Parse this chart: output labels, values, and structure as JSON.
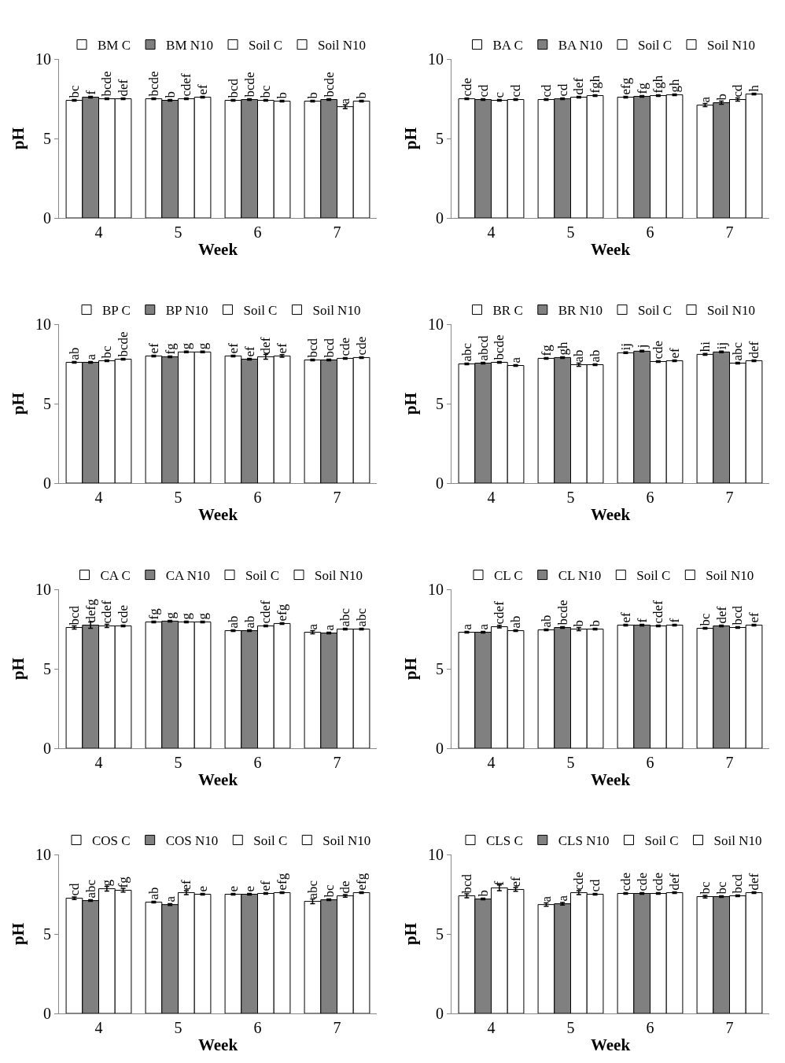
{
  "chart_data": [
    {
      "type": "bar",
      "xlabel": "Week",
      "ylabel": "pH",
      "categories": [
        "4",
        "5",
        "6",
        "7"
      ],
      "ylim": [
        0,
        10
      ],
      "yticks": [
        0,
        5,
        10
      ],
      "grid": false,
      "legend": "top",
      "series": [
        {
          "name": "BM C",
          "color": "#ffffff",
          "values": [
            7.4,
            7.5,
            7.4,
            7.35
          ],
          "errors": [
            0.05,
            0.05,
            0.05,
            0.05
          ],
          "value_labels": [
            "bc",
            "bcde",
            "bcd",
            "b"
          ]
        },
        {
          "name": "BM N10",
          "color": "#808080",
          "values": [
            7.6,
            7.4,
            7.45,
            7.45
          ],
          "errors": [
            0.05,
            0.05,
            0.05,
            0.05
          ],
          "value_labels": [
            "f",
            "b",
            "bcde",
            "bcde"
          ]
        },
        {
          "name": "Soil C",
          "color": "#ffffff",
          "values": [
            7.5,
            7.5,
            7.4,
            7.0
          ],
          "errors": [
            0.05,
            0.05,
            0.05,
            0.12
          ],
          "value_labels": [
            "bcde",
            "cdef",
            "bc",
            "a"
          ]
        },
        {
          "name": "Soil N10",
          "color": "#ffffff",
          "values": [
            7.5,
            7.6,
            7.35,
            7.35
          ],
          "errors": [
            0.05,
            0.05,
            0.05,
            0.05
          ],
          "value_labels": [
            "def",
            "ef",
            "b",
            "b"
          ]
        }
      ]
    },
    {
      "type": "bar",
      "xlabel": "Week",
      "ylabel": "pH",
      "categories": [
        "4",
        "5",
        "6",
        "7"
      ],
      "ylim": [
        0,
        10
      ],
      "yticks": [
        0,
        5,
        10
      ],
      "grid": false,
      "legend": "top",
      "series": [
        {
          "name": "BA C",
          "color": "#ffffff",
          "values": [
            7.5,
            7.45,
            7.6,
            7.1
          ],
          "errors": [
            0.05,
            0.05,
            0.05,
            0.1
          ],
          "value_labels": [
            "cde",
            "cd",
            "efg",
            "a"
          ]
        },
        {
          "name": "BA N10",
          "color": "#808080",
          "values": [
            7.45,
            7.5,
            7.65,
            7.25
          ],
          "errors": [
            0.05,
            0.05,
            0.05,
            0.1
          ],
          "value_labels": [
            "cd",
            "cd",
            "fg",
            "b"
          ]
        },
        {
          "name": "Soil C",
          "color": "#ffffff",
          "values": [
            7.4,
            7.6,
            7.7,
            7.45
          ],
          "errors": [
            0.05,
            0.05,
            0.05,
            0.1
          ],
          "value_labels": [
            "c",
            "def",
            "fgh",
            "cd"
          ]
        },
        {
          "name": "Soil N10",
          "color": "#ffffff",
          "values": [
            7.45,
            7.7,
            7.75,
            7.8
          ],
          "errors": [
            0.05,
            0.05,
            0.05,
            0.05
          ],
          "value_labels": [
            "cd",
            "fgh",
            "gh",
            "h"
          ]
        }
      ]
    },
    {
      "type": "bar",
      "xlabel": "Week",
      "ylabel": "pH",
      "categories": [
        "4",
        "5",
        "6",
        "7"
      ],
      "ylim": [
        0,
        10
      ],
      "yticks": [
        0,
        5,
        10
      ],
      "grid": false,
      "legend": "top",
      "series": [
        {
          "name": "BP C",
          "color": "#ffffff",
          "values": [
            7.6,
            8.0,
            8.0,
            7.75
          ],
          "errors": [
            0.05,
            0.05,
            0.05,
            0.05
          ],
          "value_labels": [
            "ab",
            "ef",
            "ef",
            "bcd"
          ]
        },
        {
          "name": "BP N10",
          "color": "#808080",
          "values": [
            7.6,
            7.95,
            7.8,
            7.75
          ],
          "errors": [
            0.05,
            0.05,
            0.05,
            0.05
          ],
          "value_labels": [
            "a",
            "fg",
            "ef",
            "bcd"
          ]
        },
        {
          "name": "Soil C",
          "color": "#ffffff",
          "values": [
            7.7,
            8.25,
            7.95,
            7.85
          ],
          "errors": [
            0.05,
            0.05,
            0.15,
            0.05
          ],
          "value_labels": [
            "bc",
            "g",
            "def",
            "cde"
          ]
        },
        {
          "name": "Soil N10",
          "color": "#ffffff",
          "values": [
            7.8,
            8.25,
            8.0,
            7.9
          ],
          "errors": [
            0.05,
            0.05,
            0.08,
            0.05
          ],
          "value_labels": [
            "bcde",
            "g",
            "ef",
            "cde"
          ]
        }
      ]
    },
    {
      "type": "bar",
      "xlabel": "Week",
      "ylabel": "pH",
      "categories": [
        "4",
        "5",
        "6",
        "7"
      ],
      "ylim": [
        0,
        10
      ],
      "yticks": [
        0,
        5,
        10
      ],
      "grid": false,
      "legend": "top",
      "series": [
        {
          "name": "BR C",
          "color": "#ffffff",
          "values": [
            7.5,
            7.85,
            8.2,
            8.1
          ],
          "errors": [
            0.05,
            0.05,
            0.05,
            0.05
          ],
          "value_labels": [
            "abc",
            "fg",
            "ij",
            "hi"
          ]
        },
        {
          "name": "BR N10",
          "color": "#808080",
          "values": [
            7.55,
            7.9,
            8.3,
            8.25
          ],
          "errors": [
            0.05,
            0.05,
            0.05,
            0.05
          ],
          "value_labels": [
            "abcd",
            "gh",
            "j",
            "ij"
          ]
        },
        {
          "name": "Soil C",
          "color": "#ffffff",
          "values": [
            7.6,
            7.45,
            7.65,
            7.55
          ],
          "errors": [
            0.05,
            0.1,
            0.05,
            0.05
          ],
          "value_labels": [
            "bcde",
            "ab",
            "cde",
            "abc"
          ]
        },
        {
          "name": "Soil N10",
          "color": "#ffffff",
          "values": [
            7.4,
            7.45,
            7.7,
            7.7
          ],
          "errors": [
            0.05,
            0.05,
            0.05,
            0.05
          ],
          "value_labels": [
            "a",
            "ab",
            "ef",
            "def"
          ]
        }
      ]
    },
    {
      "type": "bar",
      "xlabel": "Week",
      "ylabel": "pH",
      "categories": [
        "4",
        "5",
        "6",
        "7"
      ],
      "ylim": [
        0,
        10
      ],
      "yticks": [
        0,
        5,
        10
      ],
      "grid": false,
      "legend": "top",
      "series": [
        {
          "name": "CA C",
          "color": "#ffffff",
          "values": [
            7.6,
            7.95,
            7.4,
            7.3
          ],
          "errors": [
            0.1,
            0.05,
            0.05,
            0.1
          ],
          "value_labels": [
            "bcd",
            "fg",
            "ab",
            "a"
          ]
        },
        {
          "name": "CA N10",
          "color": "#808080",
          "values": [
            7.75,
            8.0,
            7.4,
            7.25
          ],
          "errors": [
            0.2,
            0.05,
            0.05,
            0.05
          ],
          "value_labels": [
            "defg",
            "g",
            "ab",
            "a"
          ]
        },
        {
          "name": "Soil C",
          "color": "#ffffff",
          "values": [
            7.7,
            7.95,
            7.7,
            7.5
          ],
          "errors": [
            0.1,
            0.05,
            0.05,
            0.05
          ],
          "value_labels": [
            "cdef",
            "g",
            "cdef",
            "abc"
          ]
        },
        {
          "name": "Soil N10",
          "color": "#ffffff",
          "values": [
            7.7,
            7.95,
            7.85,
            7.5
          ],
          "errors": [
            0.05,
            0.05,
            0.05,
            0.05
          ],
          "value_labels": [
            "cde",
            "g",
            "efg",
            "abc"
          ]
        }
      ]
    },
    {
      "type": "bar",
      "xlabel": "Week",
      "ylabel": "pH",
      "categories": [
        "4",
        "5",
        "6",
        "7"
      ],
      "ylim": [
        0,
        10
      ],
      "yticks": [
        0,
        5,
        10
      ],
      "grid": false,
      "legend": "top",
      "series": [
        {
          "name": "CL C",
          "color": "#ffffff",
          "values": [
            7.3,
            7.45,
            7.75,
            7.55
          ],
          "errors": [
            0.05,
            0.05,
            0.05,
            0.05
          ],
          "value_labels": [
            "a",
            "ab",
            "ef",
            "bc"
          ]
        },
        {
          "name": "CL N10",
          "color": "#808080",
          "values": [
            7.3,
            7.6,
            7.75,
            7.7
          ],
          "errors": [
            0.05,
            0.05,
            0.05,
            0.05
          ],
          "value_labels": [
            "a",
            "bcde",
            "f",
            "def"
          ]
        },
        {
          "name": "Soil C",
          "color": "#ffffff",
          "values": [
            7.65,
            7.5,
            7.7,
            7.6
          ],
          "errors": [
            0.08,
            0.1,
            0.05,
            0.05
          ],
          "value_labels": [
            "cdef",
            "b",
            "cdef",
            "bcd"
          ]
        },
        {
          "name": "Soil N10",
          "color": "#ffffff",
          "values": [
            7.4,
            7.5,
            7.75,
            7.75
          ],
          "errors": [
            0.05,
            0.05,
            0.05,
            0.05
          ],
          "value_labels": [
            "ab",
            "b",
            "f",
            "ef"
          ]
        }
      ]
    },
    {
      "type": "bar",
      "xlabel": "Week",
      "ylabel": "pH",
      "categories": [
        "4",
        "5",
        "6",
        "7"
      ],
      "ylim": [
        0,
        10
      ],
      "yticks": [
        0,
        5,
        10
      ],
      "grid": false,
      "legend": "top",
      "series": [
        {
          "name": "COS C",
          "color": "#ffffff",
          "values": [
            7.25,
            7.0,
            7.5,
            7.05
          ],
          "errors": [
            0.08,
            0.05,
            0.05,
            0.15
          ],
          "value_labels": [
            "cd",
            "ab",
            "e",
            "abc"
          ]
        },
        {
          "name": "COS N10",
          "color": "#808080",
          "values": [
            7.1,
            6.85,
            7.5,
            7.15
          ],
          "errors": [
            0.05,
            0.05,
            0.05,
            0.05
          ],
          "value_labels": [
            "abc",
            "a",
            "e",
            "bc"
          ]
        },
        {
          "name": "Soil C",
          "color": "#ffffff",
          "values": [
            7.85,
            7.6,
            7.55,
            7.4
          ],
          "errors": [
            0.15,
            0.12,
            0.05,
            0.08
          ],
          "value_labels": [
            "g",
            "ef",
            "ef",
            "de"
          ]
        },
        {
          "name": "Soil N10",
          "color": "#ffffff",
          "values": [
            7.75,
            7.5,
            7.6,
            7.6
          ],
          "errors": [
            0.12,
            0.05,
            0.05,
            0.05
          ],
          "value_labels": [
            "fg",
            "e",
            "efg",
            "efg"
          ]
        }
      ]
    },
    {
      "type": "bar",
      "xlabel": "Week",
      "ylabel": "pH",
      "categories": [
        "4",
        "5",
        "6",
        "7"
      ],
      "ylim": [
        0,
        10
      ],
      "yticks": [
        0,
        5,
        10
      ],
      "grid": false,
      "legend": "top",
      "series": [
        {
          "name": "CLS C",
          "color": "#ffffff",
          "values": [
            7.4,
            6.85,
            7.55,
            7.35
          ],
          "errors": [
            0.12,
            0.1,
            0.05,
            0.08
          ],
          "value_labels": [
            "bcd",
            "a",
            "cde",
            "bc"
          ]
        },
        {
          "name": "CLS N10",
          "color": "#808080",
          "values": [
            7.2,
            6.9,
            7.55,
            7.35
          ],
          "errors": [
            0.05,
            0.08,
            0.05,
            0.05
          ],
          "value_labels": [
            "b",
            "a",
            "cde",
            "bc"
          ]
        },
        {
          "name": "Soil C",
          "color": "#ffffff",
          "values": [
            7.9,
            7.6,
            7.55,
            7.4
          ],
          "errors": [
            0.18,
            0.12,
            0.05,
            0.05
          ],
          "value_labels": [
            "f",
            "cde",
            "cde",
            "bcd"
          ]
        },
        {
          "name": "Soil N10",
          "color": "#ffffff",
          "values": [
            7.8,
            7.5,
            7.6,
            7.6
          ],
          "errors": [
            0.12,
            0.05,
            0.05,
            0.05
          ],
          "value_labels": [
            "ef",
            "cd",
            "def",
            "def"
          ]
        }
      ]
    }
  ]
}
